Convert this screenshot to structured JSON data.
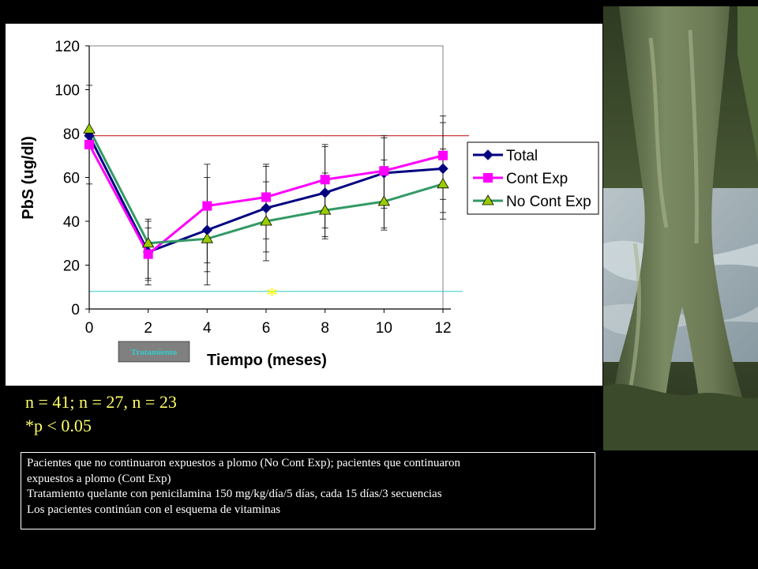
{
  "chart_data": {
    "type": "line",
    "xlabel": "Tiempo (meses)",
    "ylabel": "PbS (ug/dl)",
    "x": [
      0,
      2,
      4,
      6,
      8,
      10,
      12
    ],
    "xlim": [
      0,
      12
    ],
    "ylim": [
      0,
      120
    ],
    "yticks": [
      0,
      20,
      40,
      60,
      80,
      100,
      120
    ],
    "grid": false,
    "legend_position": "right",
    "series": [
      {
        "name": "Total",
        "color": "#000080",
        "marker": "diamond",
        "values": [
          79,
          26,
          36,
          46,
          53,
          62,
          64
        ],
        "error_high": [
          null,
          40,
          66,
          66,
          75,
          79,
          88
        ],
        "error_low": [
          null,
          11,
          11,
          26,
          33,
          46,
          41
        ]
      },
      {
        "name": "Cont Exp",
        "color": "#ff00ff",
        "marker": "square",
        "values": [
          75,
          25,
          47,
          51,
          59,
          63,
          70
        ],
        "error_high": [
          null,
          41,
          60,
          65,
          74,
          78,
          85
        ],
        "error_low": [
          null,
          13,
          17,
          22,
          32,
          37,
          44
        ]
      },
      {
        "name": "No Cont Exp",
        "color": "#339966",
        "marker": "triangle",
        "values": [
          82,
          30,
          32,
          40,
          45,
          49,
          57
        ],
        "error_high": [
          102,
          37,
          45,
          58,
          62,
          68,
          73
        ],
        "error_low": [
          57,
          14,
          21,
          32,
          37,
          36,
          50
        ]
      }
    ],
    "reference_lines": [
      {
        "y": 79,
        "color": "#cc0000"
      },
      {
        "y": 8,
        "color": "#33cccc"
      }
    ],
    "annotations": [
      {
        "text": "*",
        "x": 6.2,
        "y": 7,
        "color": "#ffff00"
      },
      {
        "text": "Tratamiento",
        "x": 2,
        "color": "#33cccc",
        "background": "#808080"
      }
    ]
  },
  "stats": {
    "line1": "n = 41; n = 27, n = 23",
    "line2": "*p < 0.05"
  },
  "notes": {
    "line1": "Pacientes que no continuaron expuestos a plomo (No Cont Exp); pacientes que continuaron",
    "line2": "expuestos a plomo (Cont Exp)",
    "line3": "Tratamiento quelante con penicilamina 150 mg/kg/día/5 días, cada 15 días/3 secuencias",
    "line4": "Los pacientes continúan con el esquema de vitaminas"
  }
}
